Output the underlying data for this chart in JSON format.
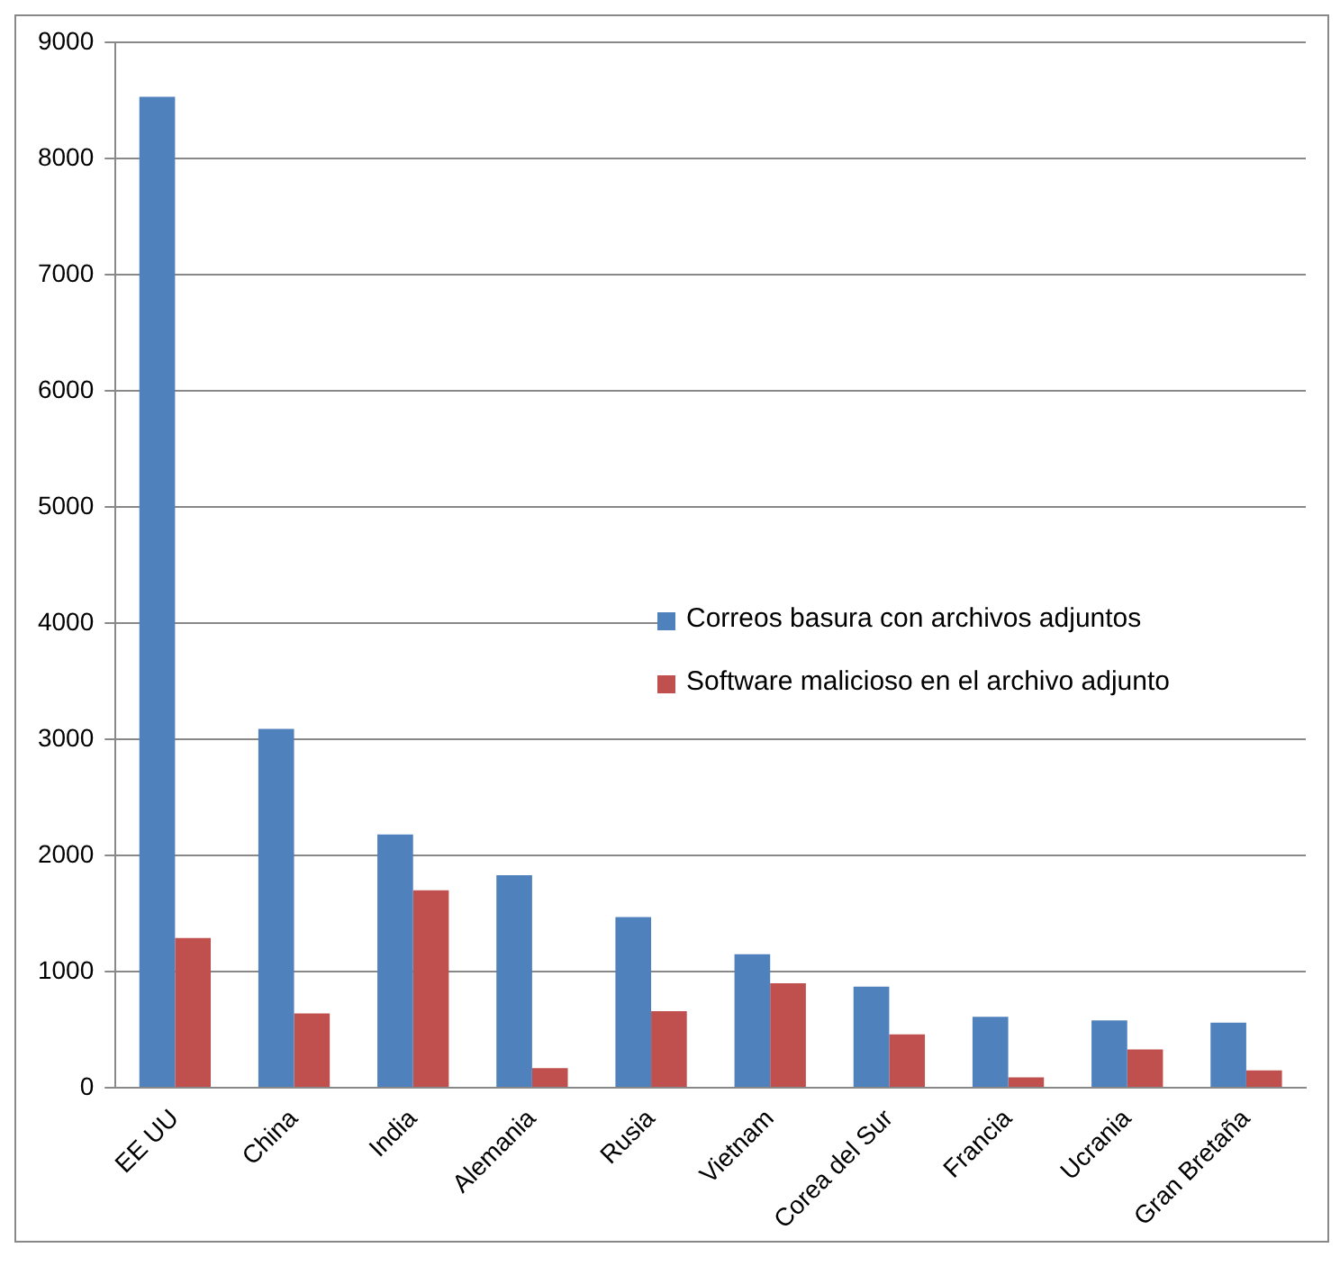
{
  "chart_data": {
    "type": "bar",
    "categories": [
      "EE UU",
      "China",
      "India",
      "Alemania",
      "Rusia",
      "Vietnam",
      "Corea del Sur",
      "Francia",
      "Ucrania",
      "Gran Bretaña"
    ],
    "series": [
      {
        "name": "Correos basura con archivos adjuntos",
        "color": "#4f81bd",
        "values": [
          8530,
          3090,
          2180,
          1830,
          1470,
          1150,
          870,
          610,
          580,
          560
        ]
      },
      {
        "name": "Software malicioso en el archivo adjunto",
        "color": "#c0504d",
        "values": [
          1290,
          640,
          1700,
          170,
          660,
          900,
          460,
          90,
          330,
          150
        ]
      }
    ],
    "ylim": [
      0,
      9000
    ],
    "yticks": [
      0,
      1000,
      2000,
      3000,
      4000,
      5000,
      6000,
      7000,
      8000,
      9000
    ],
    "grid": "y",
    "legend": "right"
  }
}
